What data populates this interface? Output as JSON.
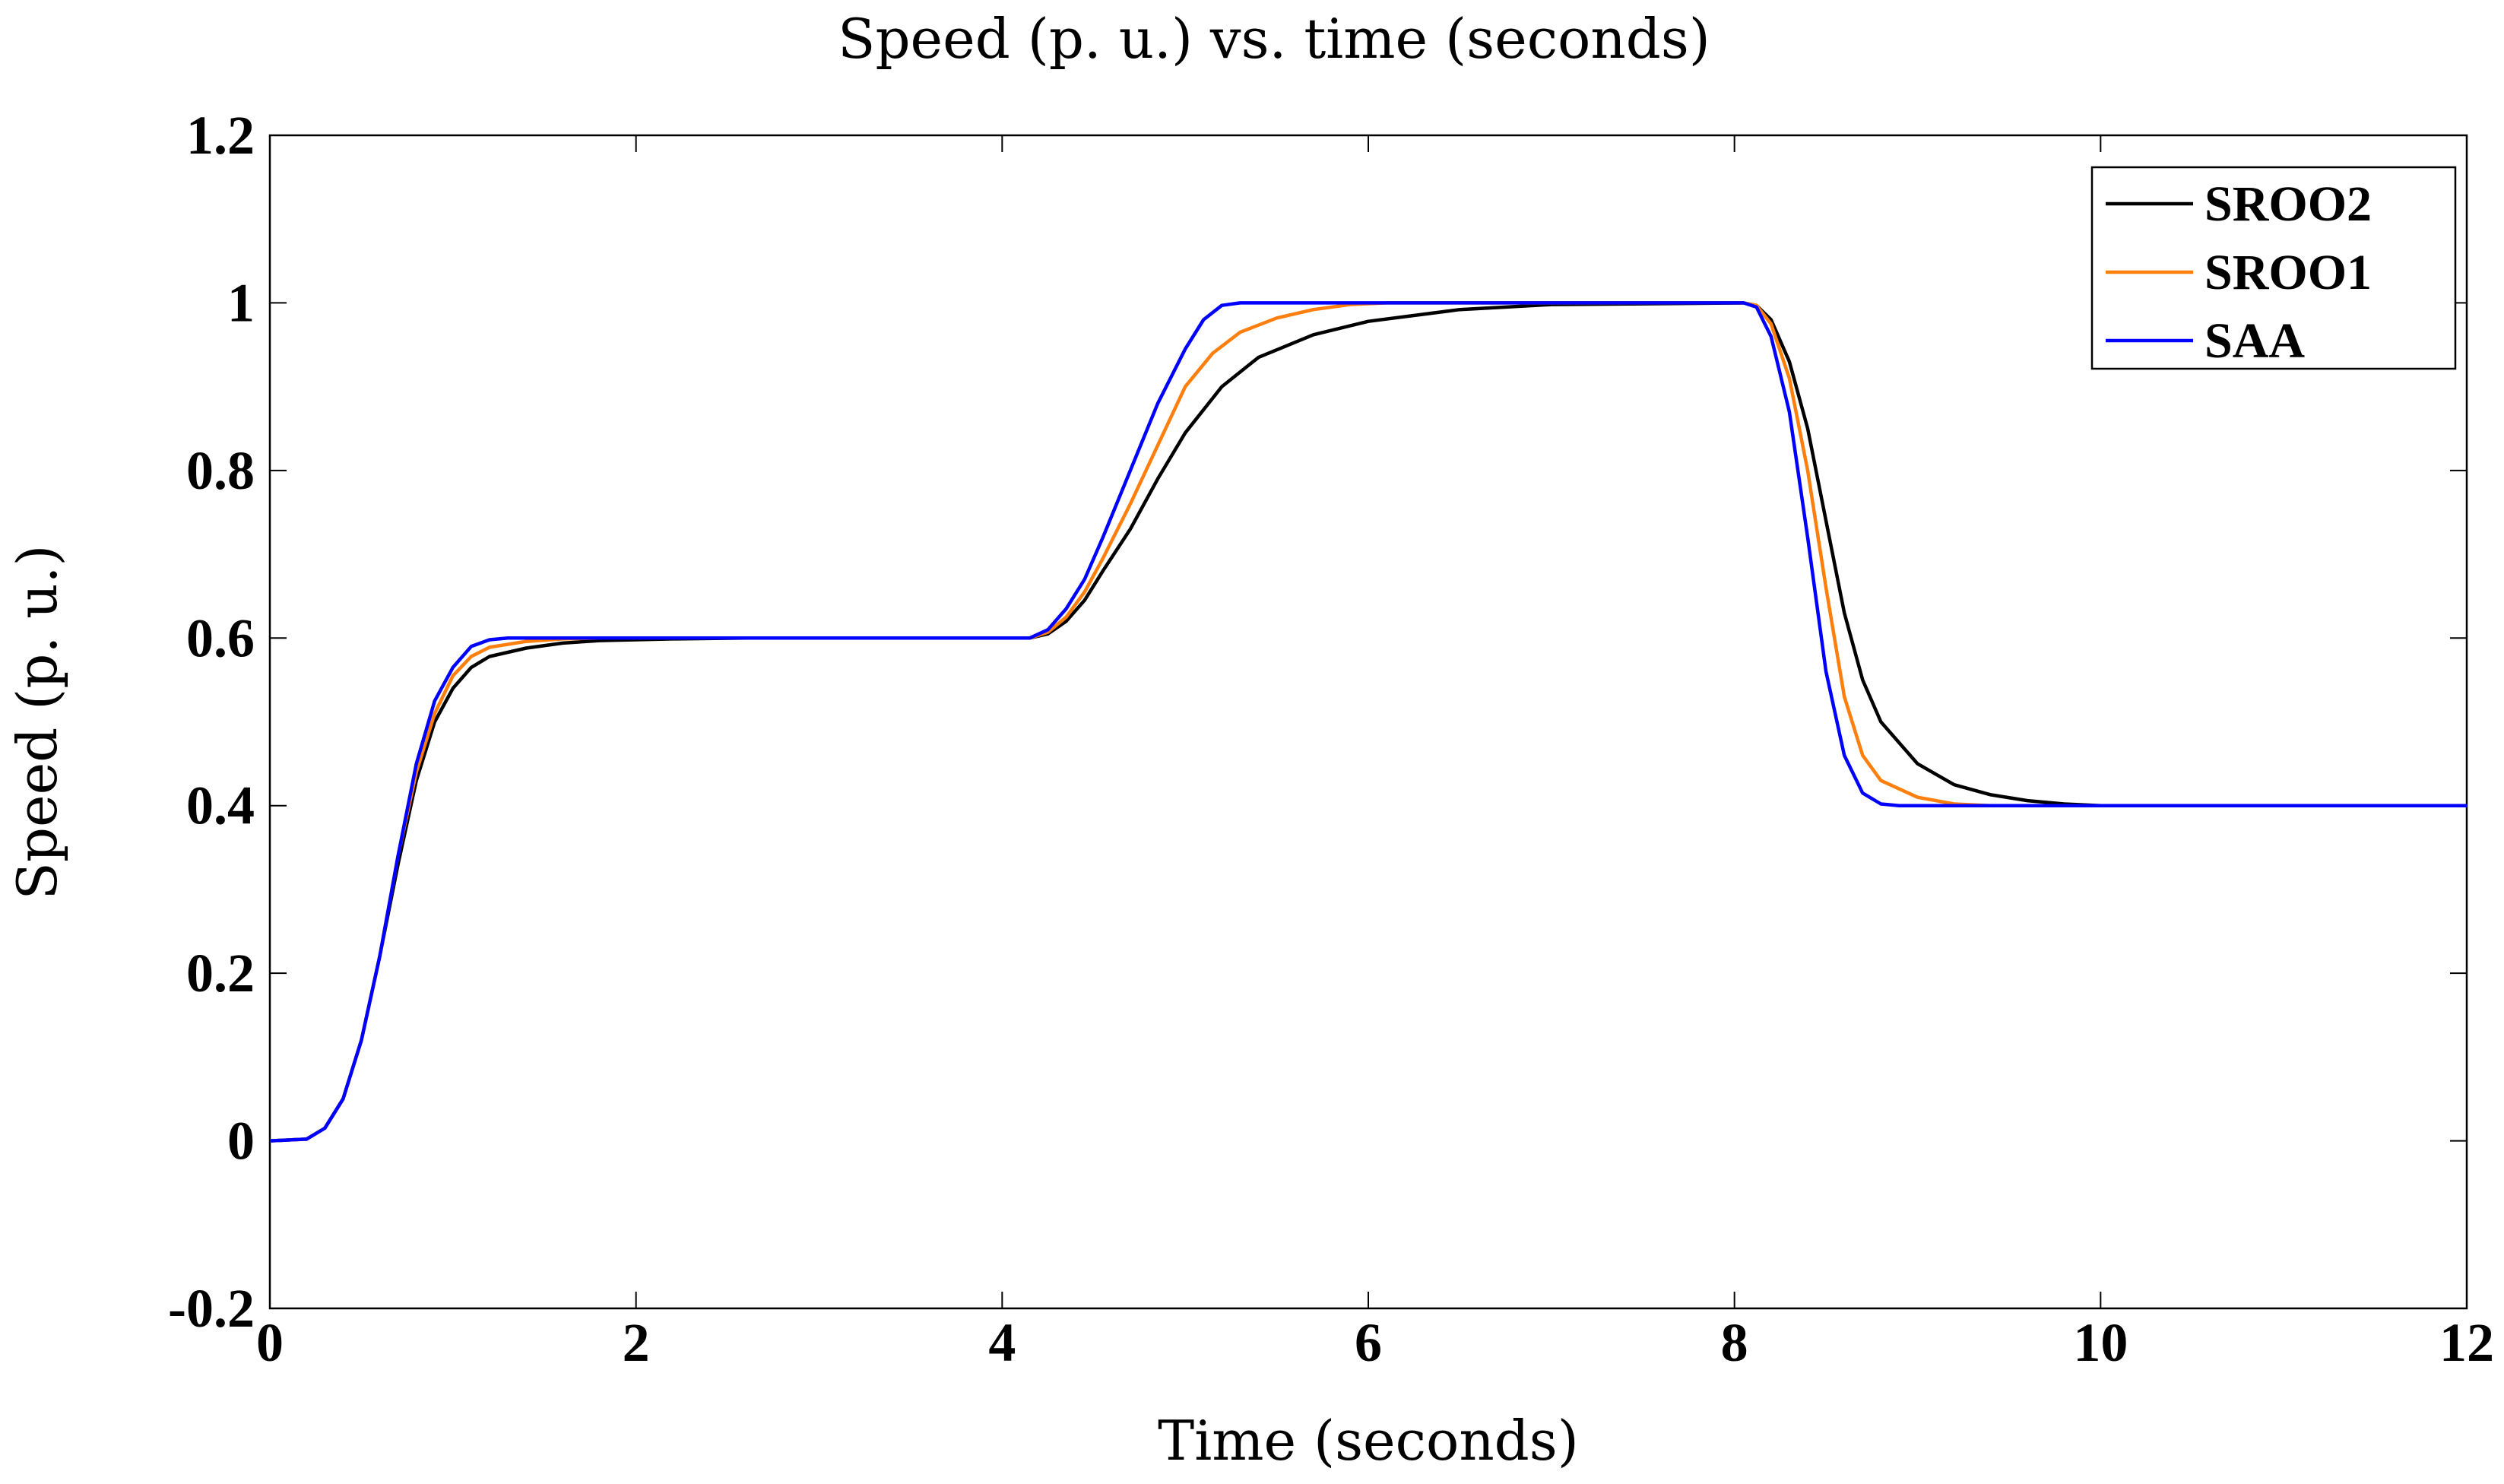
{
  "chart_data": {
    "type": "line",
    "title": "Speed (p. u.) vs. time (seconds)",
    "xlabel": "Time (seconds)",
    "ylabel": "Speed (p. u.)",
    "xlim": [
      0,
      12
    ],
    "ylim": [
      -0.2,
      1.2
    ],
    "xticks": [
      0,
      2,
      4,
      6,
      8,
      10,
      12
    ],
    "xtick_labels": [
      "0",
      "2",
      "4",
      "6",
      "8",
      "10",
      "12"
    ],
    "yticks": [
      -0.2,
      0,
      0.2,
      0.4,
      0.6,
      0.8,
      1,
      1.2
    ],
    "ytick_labels": [
      "-0.2",
      "0",
      "0.2",
      "0.4",
      "0.6",
      "0.8",
      "1",
      "1.2"
    ],
    "grid": false,
    "legend_position": "top-right",
    "series": [
      {
        "name": "SROO2",
        "color": "#000000",
        "points": [
          [
            0,
            0
          ],
          [
            0.2,
            0.002
          ],
          [
            0.3,
            0.015
          ],
          [
            0.4,
            0.05
          ],
          [
            0.5,
            0.12
          ],
          [
            0.6,
            0.22
          ],
          [
            0.7,
            0.33
          ],
          [
            0.8,
            0.43
          ],
          [
            0.9,
            0.5
          ],
          [
            1.0,
            0.54
          ],
          [
            1.1,
            0.565
          ],
          [
            1.2,
            0.578
          ],
          [
            1.4,
            0.588
          ],
          [
            1.6,
            0.594
          ],
          [
            1.8,
            0.597
          ],
          [
            2.2,
            0.599
          ],
          [
            2.6,
            0.6
          ],
          [
            4.15,
            0.6
          ],
          [
            4.25,
            0.605
          ],
          [
            4.35,
            0.62
          ],
          [
            4.45,
            0.645
          ],
          [
            4.55,
            0.68
          ],
          [
            4.7,
            0.73
          ],
          [
            4.85,
            0.79
          ],
          [
            5.0,
            0.845
          ],
          [
            5.2,
            0.9
          ],
          [
            5.4,
            0.935
          ],
          [
            5.7,
            0.962
          ],
          [
            6.0,
            0.978
          ],
          [
            6.5,
            0.992
          ],
          [
            7.0,
            0.998
          ],
          [
            8.05,
            1.0
          ],
          [
            8.12,
            0.997
          ],
          [
            8.2,
            0.98
          ],
          [
            8.3,
            0.93
          ],
          [
            8.4,
            0.85
          ],
          [
            8.5,
            0.74
          ],
          [
            8.6,
            0.63
          ],
          [
            8.7,
            0.55
          ],
          [
            8.8,
            0.5
          ],
          [
            9.0,
            0.45
          ],
          [
            9.2,
            0.425
          ],
          [
            9.4,
            0.413
          ],
          [
            9.6,
            0.406
          ],
          [
            9.8,
            0.402
          ],
          [
            10.0,
            0.4
          ],
          [
            12,
            0.4
          ]
        ]
      },
      {
        "name": "SROO1",
        "color": "#FF7F0E",
        "points": [
          [
            0,
            0
          ],
          [
            0.2,
            0.002
          ],
          [
            0.3,
            0.015
          ],
          [
            0.4,
            0.05
          ],
          [
            0.5,
            0.12
          ],
          [
            0.6,
            0.22
          ],
          [
            0.7,
            0.34
          ],
          [
            0.8,
            0.44
          ],
          [
            0.9,
            0.51
          ],
          [
            1.0,
            0.555
          ],
          [
            1.1,
            0.578
          ],
          [
            1.2,
            0.589
          ],
          [
            1.4,
            0.596
          ],
          [
            1.6,
            0.599
          ],
          [
            1.8,
            0.6
          ],
          [
            4.15,
            0.6
          ],
          [
            4.25,
            0.607
          ],
          [
            4.35,
            0.625
          ],
          [
            4.45,
            0.655
          ],
          [
            4.55,
            0.695
          ],
          [
            4.7,
            0.76
          ],
          [
            4.85,
            0.83
          ],
          [
            5.0,
            0.9
          ],
          [
            5.15,
            0.94
          ],
          [
            5.3,
            0.965
          ],
          [
            5.5,
            0.982
          ],
          [
            5.7,
            0.992
          ],
          [
            5.9,
            0.998
          ],
          [
            6.1,
            1.0
          ],
          [
            8.05,
            1.0
          ],
          [
            8.12,
            0.997
          ],
          [
            8.2,
            0.975
          ],
          [
            8.3,
            0.91
          ],
          [
            8.4,
            0.8
          ],
          [
            8.5,
            0.66
          ],
          [
            8.6,
            0.53
          ],
          [
            8.7,
            0.46
          ],
          [
            8.8,
            0.43
          ],
          [
            9.0,
            0.41
          ],
          [
            9.2,
            0.402
          ],
          [
            9.4,
            0.4
          ],
          [
            12,
            0.4
          ]
        ]
      },
      {
        "name": "SAA",
        "color": "#0000FF",
        "points": [
          [
            0,
            0
          ],
          [
            0.2,
            0.002
          ],
          [
            0.3,
            0.015
          ],
          [
            0.4,
            0.05
          ],
          [
            0.5,
            0.12
          ],
          [
            0.6,
            0.22
          ],
          [
            0.7,
            0.34
          ],
          [
            0.8,
            0.45
          ],
          [
            0.9,
            0.525
          ],
          [
            1.0,
            0.565
          ],
          [
            1.1,
            0.59
          ],
          [
            1.2,
            0.598
          ],
          [
            1.3,
            0.6
          ],
          [
            4.15,
            0.6
          ],
          [
            4.25,
            0.61
          ],
          [
            4.35,
            0.635
          ],
          [
            4.45,
            0.67
          ],
          [
            4.55,
            0.72
          ],
          [
            4.7,
            0.8
          ],
          [
            4.85,
            0.88
          ],
          [
            5.0,
            0.945
          ],
          [
            5.1,
            0.98
          ],
          [
            5.2,
            0.997
          ],
          [
            5.3,
            1.0
          ],
          [
            8.05,
            1.0
          ],
          [
            8.12,
            0.995
          ],
          [
            8.2,
            0.96
          ],
          [
            8.3,
            0.87
          ],
          [
            8.4,
            0.72
          ],
          [
            8.5,
            0.56
          ],
          [
            8.6,
            0.46
          ],
          [
            8.7,
            0.415
          ],
          [
            8.8,
            0.402
          ],
          [
            8.9,
            0.4
          ],
          [
            12,
            0.4
          ]
        ]
      }
    ]
  }
}
